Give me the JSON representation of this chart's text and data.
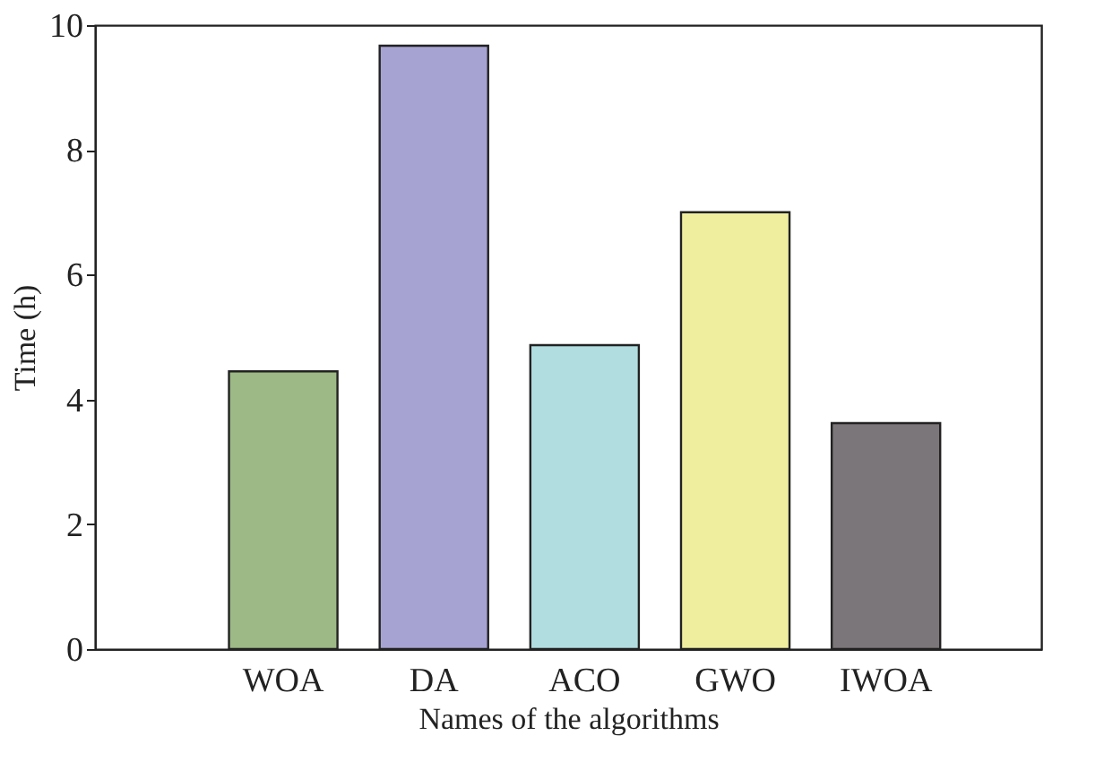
{
  "chart_data": {
    "type": "bar",
    "xlabel": "Names of the algorithms",
    "ylabel": "Time (h)",
    "categories": [
      "WOA",
      "DA",
      "ACO",
      "GWO",
      "IWOA"
    ],
    "values": [
      4.45,
      9.67,
      4.87,
      7.0,
      3.62
    ],
    "colors": [
      "#9db985",
      "#a6a3d2",
      "#b1dde0",
      "#eeee9e",
      "#7b7679"
    ],
    "ylim": [
      0,
      10
    ],
    "yticks": [
      0,
      2,
      4,
      6,
      8,
      10
    ],
    "grid": false
  }
}
